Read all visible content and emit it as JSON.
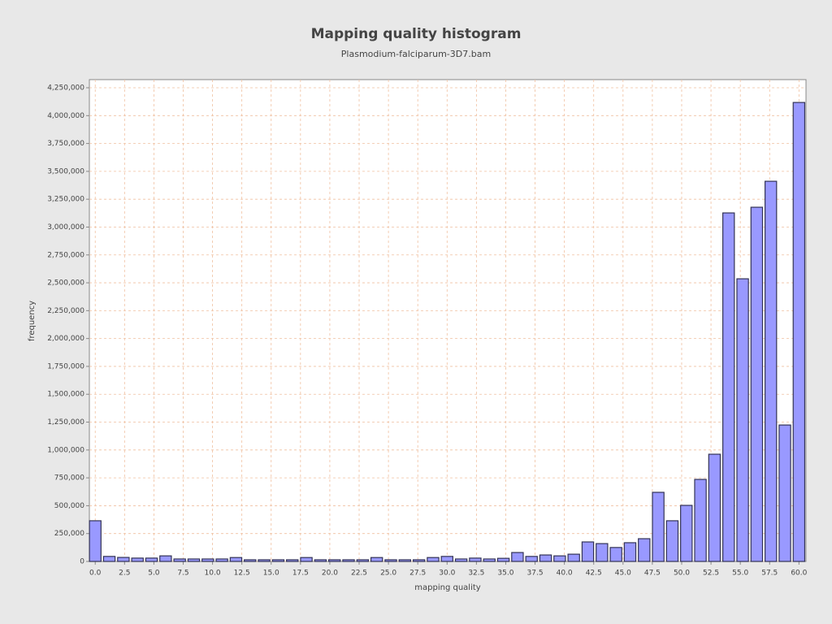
{
  "chart_data": {
    "type": "bar",
    "title": "Mapping quality histogram",
    "subtitle": "Plasmodium-falciparum-3D7.bam",
    "x_label": "mapping quality",
    "y_label": "frequency",
    "color": "#9999ff",
    "grid": true,
    "x": [
      0,
      1.2,
      2.4,
      3.6,
      4.8,
      6,
      7.2,
      8.4,
      9.6,
      10.8,
      12,
      13.2,
      14.4,
      15.6,
      16.8,
      18,
      19.2,
      20.4,
      21.6,
      22.8,
      24,
      25.2,
      26.4,
      27.6,
      28.8,
      30,
      31.2,
      32.4,
      33.6,
      34.8,
      36,
      37.2,
      38.4,
      39.6,
      40.8,
      42,
      43.2,
      44.4,
      45.6,
      46.8,
      48,
      49.2,
      50.4,
      51.6,
      52.8,
      54,
      55.2,
      56.4,
      57.6,
      58.8,
      60
    ],
    "values": [
      365000,
      45000,
      36000,
      30000,
      30000,
      50000,
      22000,
      22000,
      22000,
      22000,
      35000,
      15000,
      15000,
      15000,
      15000,
      35000,
      15000,
      15000,
      15000,
      15000,
      35000,
      15000,
      15000,
      15000,
      35000,
      45000,
      22000,
      30000,
      22000,
      28000,
      80000,
      45000,
      58000,
      50000,
      65000,
      175000,
      160000,
      125000,
      168000,
      204000,
      620000,
      365000,
      503000,
      736000,
      962000,
      3127000,
      2536000,
      3178000,
      3411000,
      1224000,
      4118000
    ],
    "xlim": [
      -0.5,
      60.6
    ],
    "xticks": [
      {
        "value": 0,
        "label": "0.0"
      },
      2.5,
      {
        "value": 5,
        "label": "5.0"
      },
      7.5,
      {
        "value": 10,
        "label": "10.0"
      },
      12.5,
      {
        "value": 15,
        "label": "15.0"
      },
      17.5,
      {
        "value": 20,
        "label": "20.0"
      },
      22.5,
      {
        "value": 25,
        "label": "25.0"
      },
      27.5,
      {
        "value": 30,
        "label": "30.0"
      },
      32.5,
      {
        "value": 35,
        "label": "35.0"
      },
      37.5,
      {
        "value": 40,
        "label": "40.0"
      },
      42.5,
      {
        "value": 45,
        "label": "45.0"
      },
      47.5,
      {
        "value": 50,
        "label": "50.0"
      },
      52.5,
      {
        "value": 55,
        "label": "55.0"
      },
      57.5,
      {
        "value": 60,
        "label": "60.0"
      }
    ],
    "ylim": [
      0,
      4323000
    ],
    "yticks": [
      0,
      {
        "value": 250000,
        "label": "250,000"
      },
      {
        "value": 500000,
        "label": "500,000"
      },
      {
        "value": 750000,
        "label": "750,000"
      },
      {
        "value": 1000000,
        "label": "1,000,000"
      },
      {
        "value": 1250000,
        "label": "1,250,000"
      },
      {
        "value": 1500000,
        "label": "1,500,000"
      },
      {
        "value": 1750000,
        "label": "1,750,000"
      },
      {
        "value": 2000000,
        "label": "2,000,000"
      },
      {
        "value": 2250000,
        "label": "2,250,000"
      },
      {
        "value": 2500000,
        "label": "2,500,000"
      },
      {
        "value": 2750000,
        "label": "2,750,000"
      },
      {
        "value": 3000000,
        "label": "3,000,000"
      },
      {
        "value": 3250000,
        "label": "3,250,000"
      },
      {
        "value": 3500000,
        "label": "3,500,000"
      },
      {
        "value": 3750000,
        "label": "3,750,000"
      },
      {
        "value": 4000000,
        "label": "4,000,000"
      },
      {
        "value": 4250000,
        "label": "4,250,000"
      }
    ]
  }
}
